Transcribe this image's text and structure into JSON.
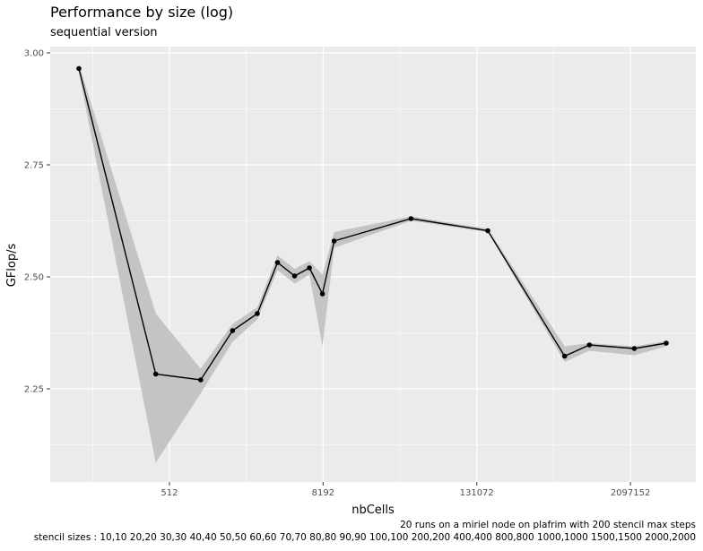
{
  "chart_data": {
    "type": "line",
    "title": "Performance by size (log)",
    "subtitle": "sequential version",
    "xlabel": "nbCells",
    "ylabel": "GFlop/s",
    "x_scale": "log2",
    "x_ticks": [
      512,
      8192,
      131072,
      2097152
    ],
    "y_ticks": [
      2.25,
      2.5,
      2.75,
      3.0
    ],
    "y_tick_labels": [
      "2.25",
      "2.50",
      "2.75",
      "3.00"
    ],
    "grid": true,
    "legend": "none",
    "caption": [
      "20 runs on a miriel node on plafrim with 200 stencil max steps",
      "stencil sizes : 10,10 20,20 30,30 40,40 50,50 60,60 70,70 80,80 90,90 100,100 200,200 400,400 800,800 1000,1000 1500,1500 2000,2000"
    ],
    "series": [
      {
        "x": [
          100,
          400,
          900,
          1600,
          2500,
          3600,
          4900,
          6400,
          8100,
          10000,
          40000,
          160000,
          640000,
          1000000,
          2250000,
          4000000
        ],
        "y": [
          2.965,
          2.283,
          2.27,
          2.38,
          2.418,
          2.532,
          2.502,
          2.52,
          2.462,
          2.58,
          2.63,
          2.603,
          2.323,
          2.348,
          2.34,
          2.352
        ],
        "ymin": [
          2.955,
          2.085,
          2.24,
          2.355,
          2.405,
          2.515,
          2.485,
          2.505,
          2.345,
          2.565,
          2.625,
          2.6,
          2.31,
          2.335,
          2.325,
          2.345
        ],
        "ymax": [
          2.975,
          2.418,
          2.295,
          2.395,
          2.432,
          2.548,
          2.518,
          2.535,
          2.505,
          2.6,
          2.635,
          2.607,
          2.345,
          2.352,
          2.345,
          2.357
        ]
      }
    ],
    "colors": {
      "panel": "#ebebeb",
      "grid": "#ffffff",
      "ribbon": "#c4c4c4",
      "line": "#000000",
      "axis_text": "#4d4d4d"
    }
  }
}
